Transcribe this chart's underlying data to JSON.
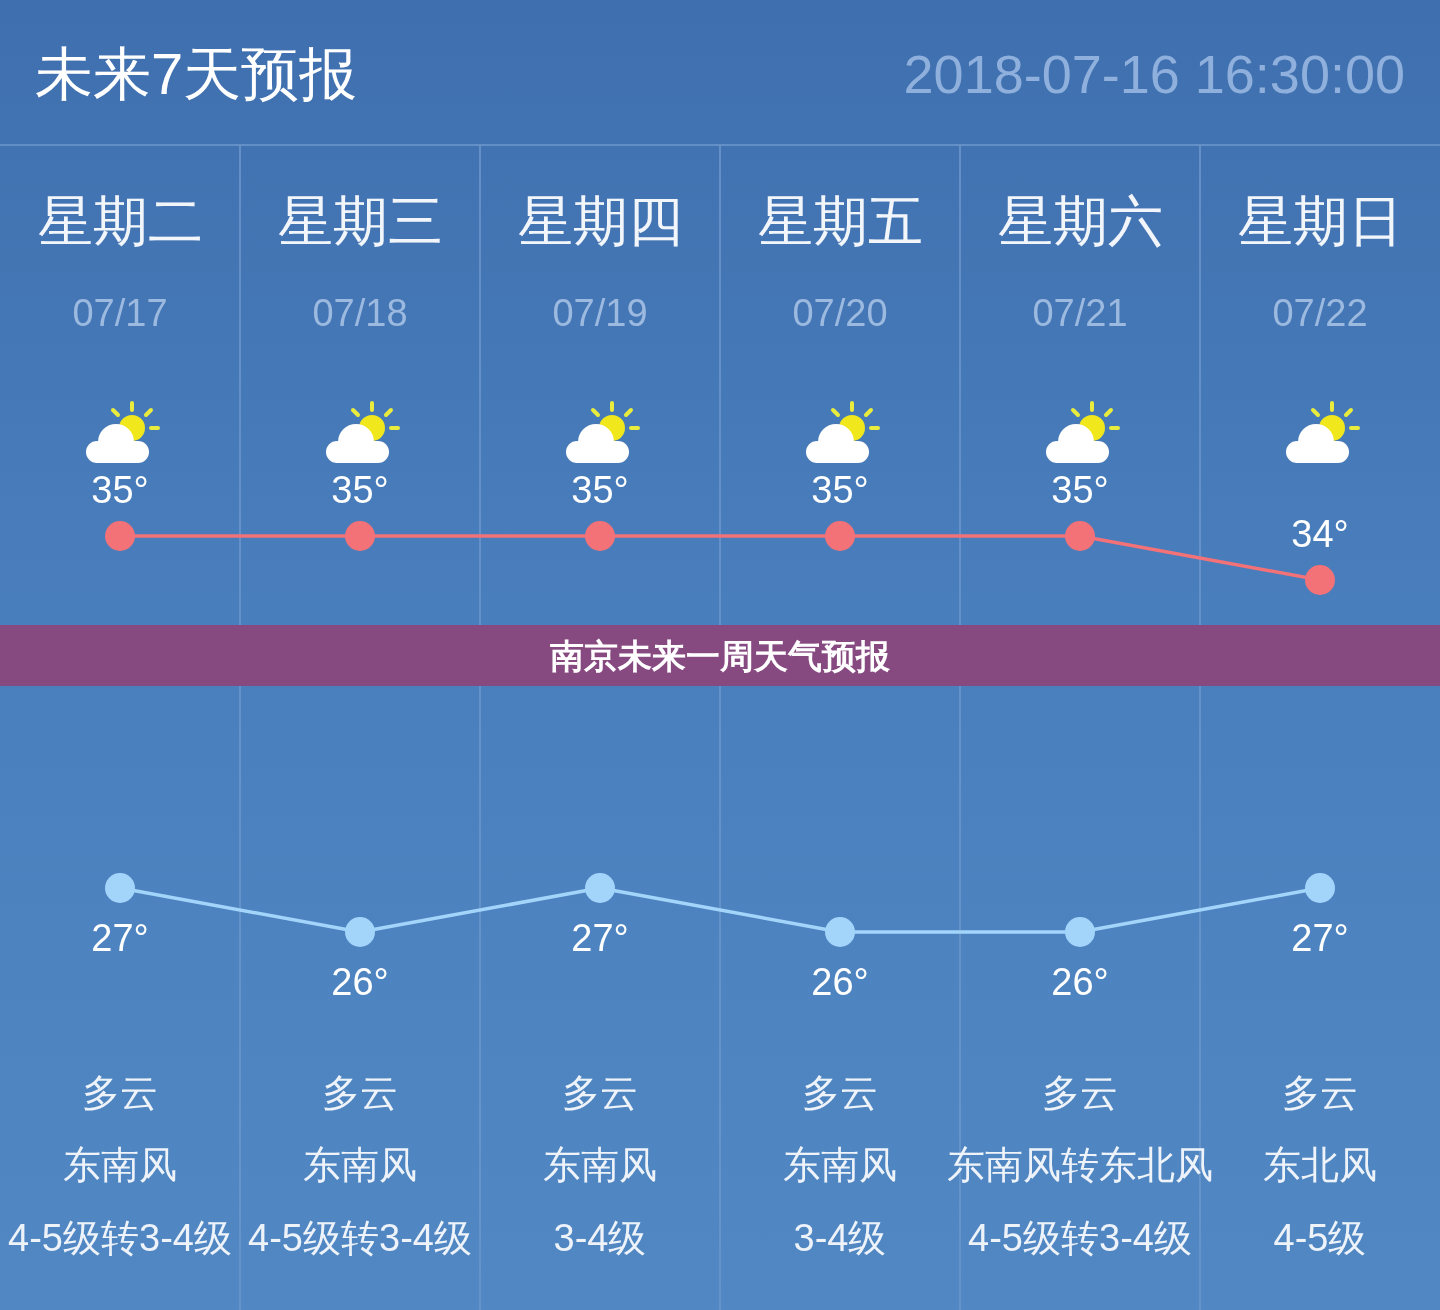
{
  "chart_data": {
    "type": "line",
    "title": "未来7天预报",
    "subtitle": "2018-07-16 16:30:00",
    "categories": [
      "星期二",
      "星期三",
      "星期四",
      "星期五",
      "星期六",
      "星期日"
    ],
    "series": [
      {
        "color": "#f27278",
        "values": [
          35,
          35,
          35,
          35,
          35,
          34
        ],
        "value_labels": [
          "35°",
          "35°",
          "35°",
          "35°",
          "35°",
          "34°"
        ]
      },
      {
        "color": "#a3d5fb",
        "values": [
          27,
          26,
          27,
          26,
          26,
          27
        ],
        "value_labels": [
          "27°",
          "26°",
          "27°",
          "26°",
          "26°",
          "27°"
        ]
      }
    ],
    "marker": "circle",
    "line_style": "solid",
    "grid": "x",
    "tick_labels": "x",
    "annotations": [
      "07/17",
      "07/18",
      "07/19",
      "07/20",
      "07/21",
      "07/22",
      "多云",
      "多云",
      "多云",
      "多云",
      "多云",
      "多云",
      "东南风",
      "东南风",
      "东南风",
      "东南风",
      "东南风转东北风",
      "东北风",
      "4-5级转3-4级",
      "4-5级转3-4级",
      "3-4级",
      "3-4级",
      "4-5级转3-4级",
      "4-5级",
      "南京未来一周天气预报"
    ]
  }
}
